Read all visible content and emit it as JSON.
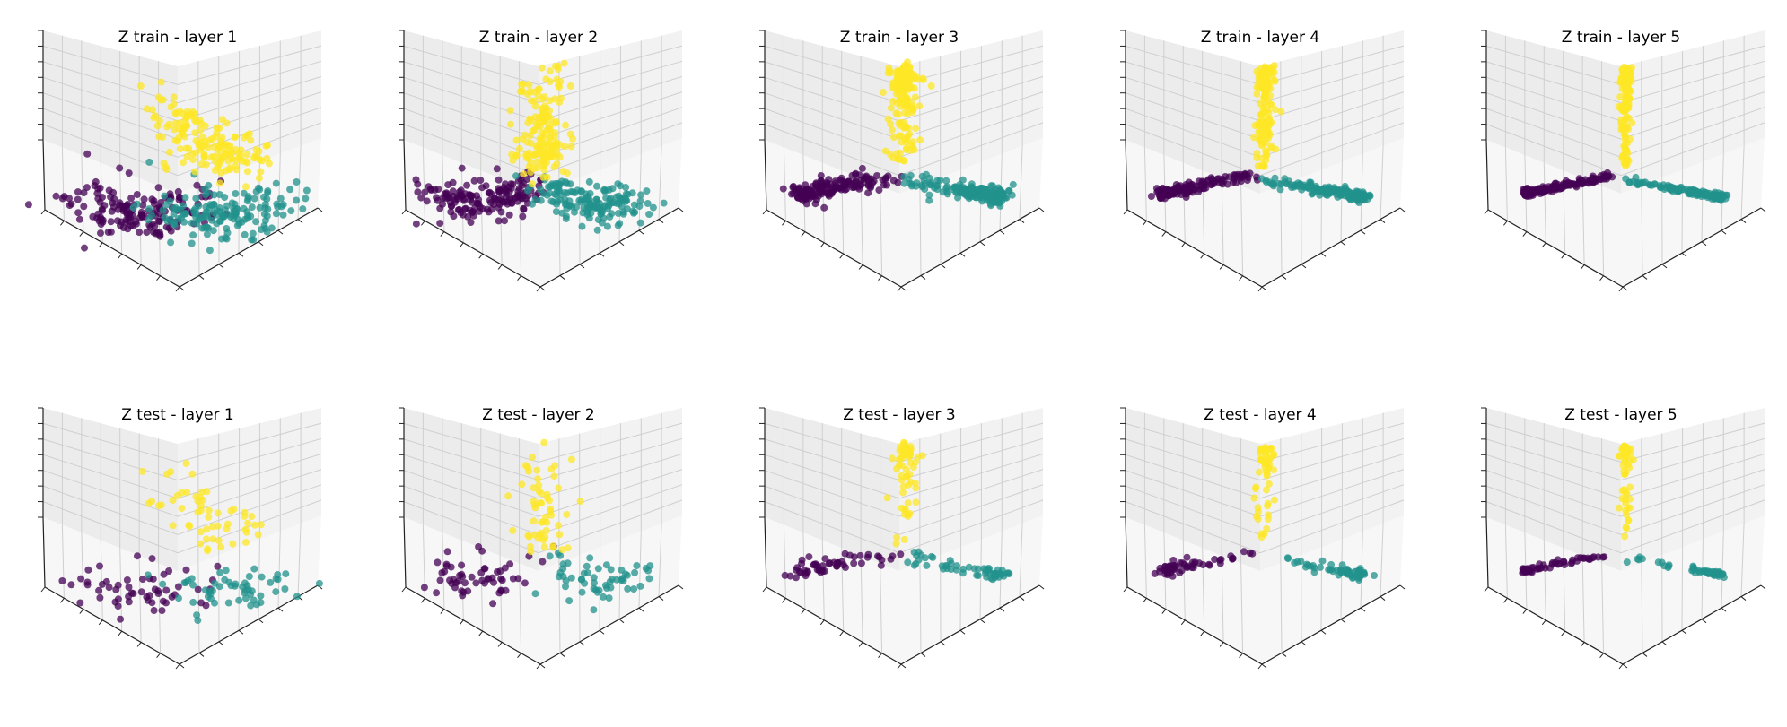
{
  "figure": {
    "background": "#ffffff",
    "colors": {
      "class_0": "#440154",
      "class_1": "#21918c",
      "class_2": "#fde725",
      "pane_left": "#ececec",
      "pane_right": "#f2f2f2",
      "pane_floor": "#f7f7f7",
      "grid": "#cfcfcf",
      "axis": "#222222"
    }
  },
  "chart_data": [
    {
      "type": "scatter",
      "title": "Z train - layer 1",
      "view": "azimuth 45, elevation 35",
      "grid": true,
      "colormap": "viridis",
      "classes": 3
    },
    {
      "type": "scatter",
      "title": "Z train - layer 2",
      "view": "azimuth 45, elevation 35",
      "grid": true,
      "colormap": "viridis",
      "classes": 3
    },
    {
      "type": "scatter",
      "title": "Z train - layer 3",
      "view": "azimuth 45, elevation 35",
      "grid": true,
      "colormap": "viridis",
      "classes": 3
    },
    {
      "type": "scatter",
      "title": "Z train - layer 4",
      "view": "azimuth 45, elevation 35",
      "grid": true,
      "colormap": "viridis",
      "classes": 3
    },
    {
      "type": "scatter",
      "title": "Z train - layer 5",
      "view": "azimuth 45, elevation 35",
      "grid": true,
      "colormap": "viridis",
      "classes": 3
    },
    {
      "type": "scatter",
      "title": "Z test - layer 1",
      "view": "azimuth 45, elevation 35",
      "grid": true,
      "colormap": "viridis",
      "classes": 3
    },
    {
      "type": "scatter",
      "title": "Z test - layer 2",
      "view": "azimuth 45, elevation 35",
      "grid": true,
      "colormap": "viridis",
      "classes": 3
    },
    {
      "type": "scatter",
      "title": "Z test - layer 3",
      "view": "azimuth 45, elevation 35",
      "grid": true,
      "colormap": "viridis",
      "classes": 3
    },
    {
      "type": "scatter",
      "title": "Z test - layer 4",
      "view": "azimuth 45, elevation 35",
      "grid": true,
      "colormap": "viridis",
      "classes": 3
    },
    {
      "type": "scatter",
      "title": "Z test - layer 5",
      "view": "azimuth 45, elevation 35",
      "grid": true,
      "colormap": "viridis",
      "classes": 3
    }
  ]
}
